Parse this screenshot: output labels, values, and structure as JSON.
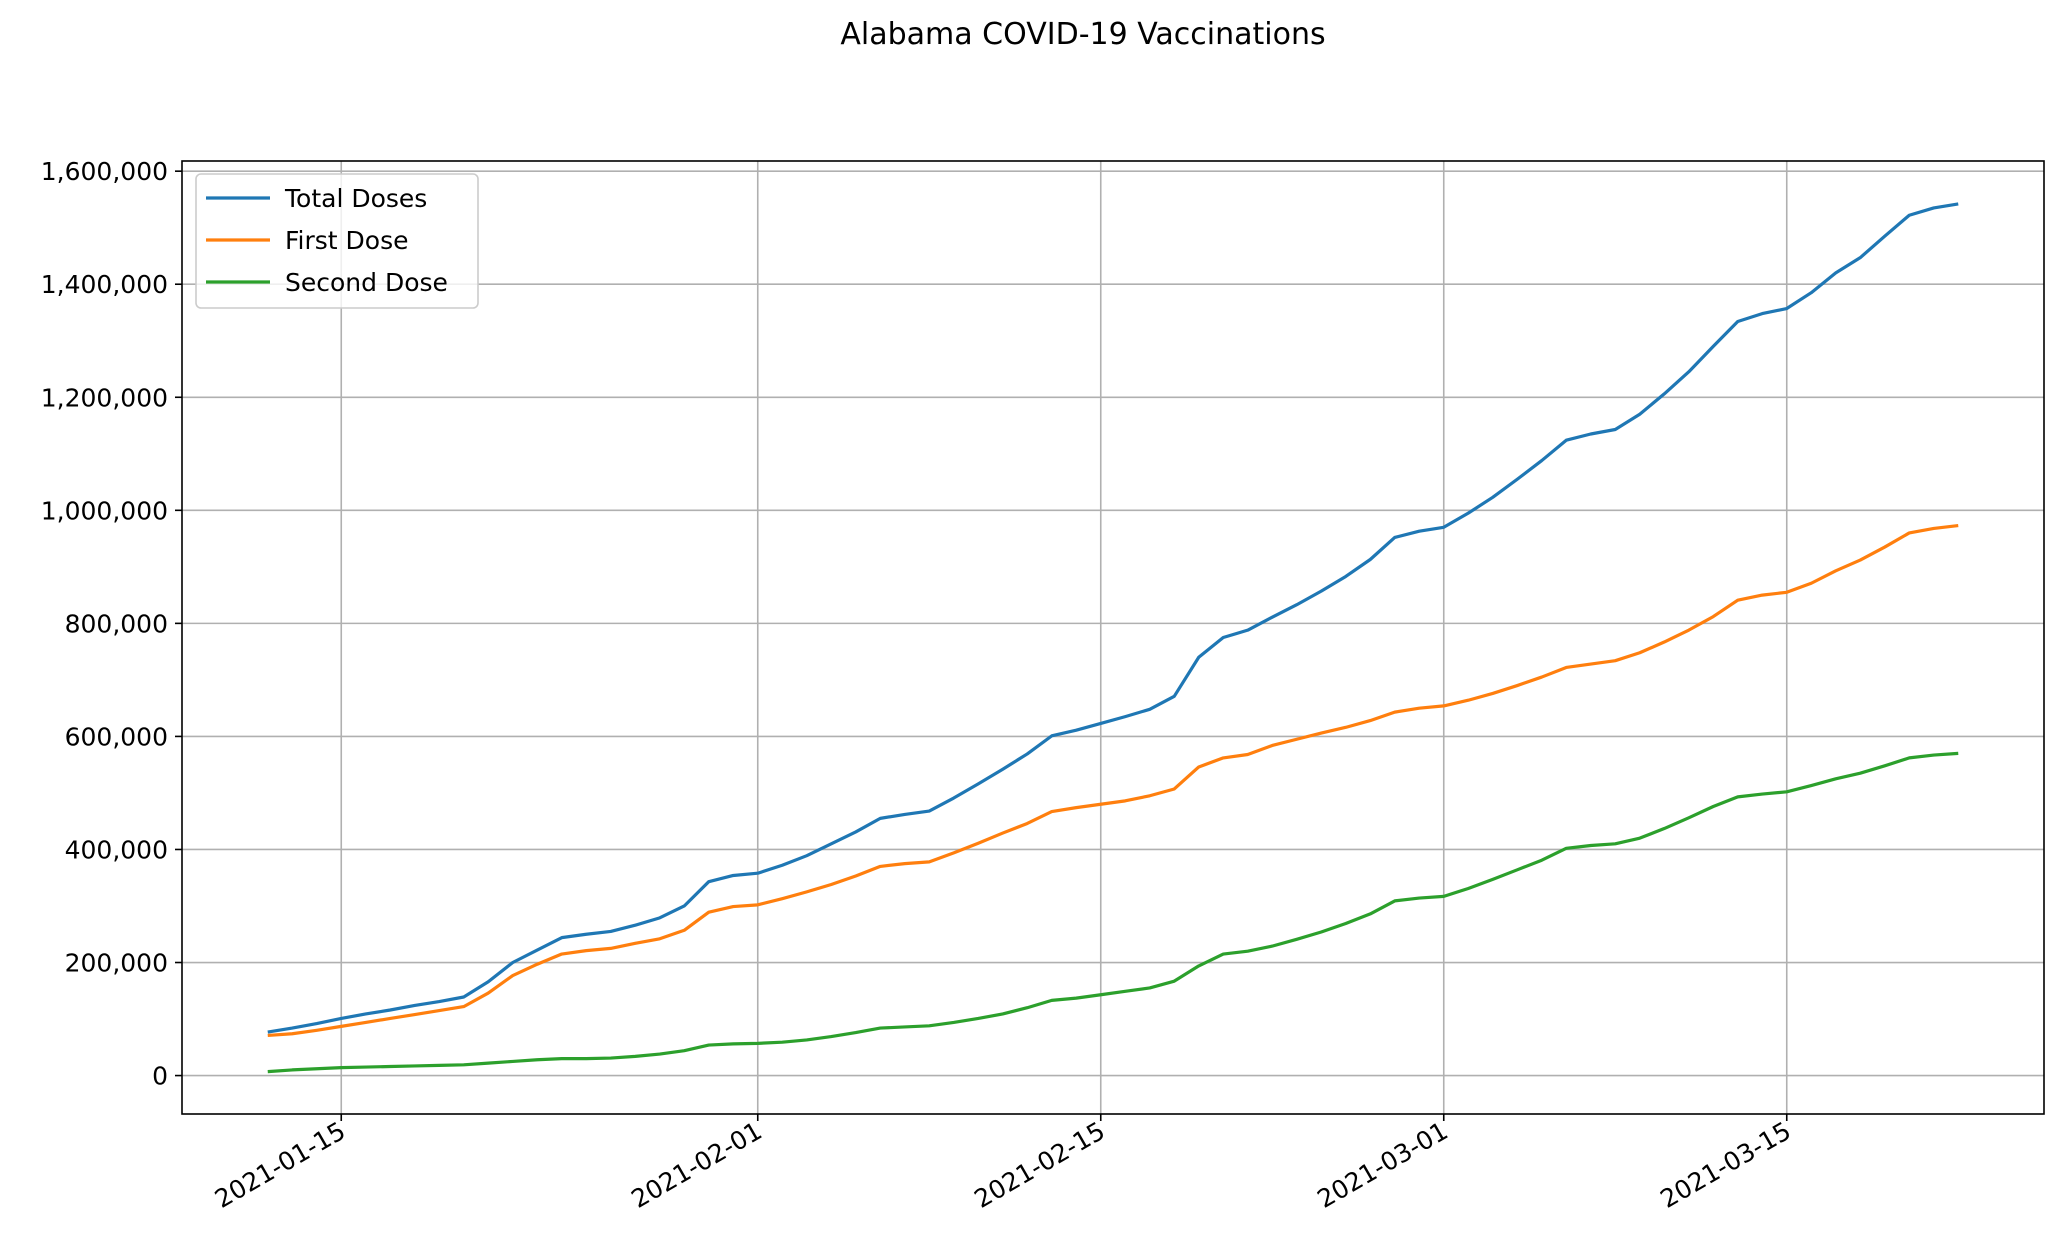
{
  "chart_data": {
    "type": "line",
    "title": "Alabama COVID-19 Vaccinations",
    "xlabel": "",
    "ylabel": "",
    "x_type": "date",
    "x_ticks": [
      "2021-01-15",
      "2021-02-01",
      "2021-02-15",
      "2021-03-01",
      "2021-03-15"
    ],
    "y_ticks": [
      0,
      200000,
      400000,
      600000,
      800000,
      1000000,
      1200000,
      1400000,
      1600000
    ],
    "y_tick_labels": [
      "0",
      "200,000",
      "400,000",
      "600,000",
      "800,000",
      "1,000,000",
      "1,200,000",
      "1,400,000",
      "1,600,000"
    ],
    "xlim": [
      "2021-01-08T12:00",
      "2021-03-25T12:00"
    ],
    "ylim": [
      -68000,
      1618000
    ],
    "grid": true,
    "legend_position": "upper left",
    "x": [
      "2021-01-12",
      "2021-01-13",
      "2021-01-14",
      "2021-01-15",
      "2021-01-16",
      "2021-01-17",
      "2021-01-18",
      "2021-01-19",
      "2021-01-20",
      "2021-01-21",
      "2021-01-22",
      "2021-01-23",
      "2021-01-24",
      "2021-01-25",
      "2021-01-26",
      "2021-01-27",
      "2021-01-28",
      "2021-01-29",
      "2021-01-30",
      "2021-01-31",
      "2021-02-01",
      "2021-02-02",
      "2021-02-03",
      "2021-02-04",
      "2021-02-05",
      "2021-02-06",
      "2021-02-07",
      "2021-02-08",
      "2021-02-09",
      "2021-02-10",
      "2021-02-11",
      "2021-02-12",
      "2021-02-13",
      "2021-02-14",
      "2021-02-15",
      "2021-02-16",
      "2021-02-17",
      "2021-02-18",
      "2021-02-19",
      "2021-02-20",
      "2021-02-21",
      "2021-02-22",
      "2021-02-23",
      "2021-02-24",
      "2021-02-25",
      "2021-02-26",
      "2021-02-27",
      "2021-02-28",
      "2021-03-01",
      "2021-03-02",
      "2021-03-03",
      "2021-03-04",
      "2021-03-05",
      "2021-03-06",
      "2021-03-07",
      "2021-03-08",
      "2021-03-09",
      "2021-03-10",
      "2021-03-11",
      "2021-03-12",
      "2021-03-13",
      "2021-03-14",
      "2021-03-15",
      "2021-03-16",
      "2021-03-17",
      "2021-03-18",
      "2021-03-19",
      "2021-03-20",
      "2021-03-21",
      "2021-03-22"
    ],
    "series": [
      {
        "name": "Total Doses",
        "color": "#1f77b4",
        "values": [
          77000,
          84000,
          92000,
          101000,
          109000,
          116000,
          124000,
          131000,
          139000,
          166000,
          200000,
          222000,
          244000,
          250000,
          255000,
          266000,
          279000,
          300000,
          343000,
          354000,
          358000,
          372000,
          389000,
          410000,
          431000,
          455000,
          462000,
          468000,
          491000,
          516000,
          542000,
          569000,
          601000,
          611000,
          623000,
          635000,
          648000,
          671000,
          740000,
          775000,
          788000,
          811000,
          833000,
          857000,
          883000,
          913000,
          952000,
          963000,
          970000,
          995000,
          1023000,
          1055000,
          1088000,
          1124000,
          1135000,
          1143000,
          1170000,
          1206000,
          1245000,
          1290000,
          1334000,
          1348000,
          1357000,
          1385000,
          1420000,
          1447000,
          1485000,
          1522000,
          1535000,
          1542000
        ]
      },
      {
        "name": "First Dose",
        "color": "#ff7f0e",
        "values": [
          71000,
          74000,
          80000,
          87000,
          94000,
          101000,
          108000,
          115000,
          122000,
          146000,
          177000,
          197000,
          215000,
          221000,
          225000,
          234000,
          242000,
          257000,
          289000,
          299000,
          302000,
          313000,
          325000,
          338000,
          353000,
          370000,
          375000,
          378000,
          394000,
          411000,
          429000,
          446000,
          467000,
          474000,
          480000,
          486000,
          495000,
          507000,
          546000,
          562000,
          568000,
          584000,
          595000,
          606000,
          616000,
          628000,
          643000,
          650000,
          654000,
          664000,
          676000,
          690000,
          705000,
          722000,
          728000,
          734000,
          748000,
          767000,
          788000,
          812000,
          841000,
          850000,
          855000,
          871000,
          893000,
          912000,
          935000,
          960000,
          968000,
          973000
        ]
      },
      {
        "name": "Second Dose",
        "color": "#2ca02c",
        "values": [
          7000,
          10000,
          12000,
          14000,
          15000,
          16000,
          17000,
          18000,
          19000,
          22000,
          25000,
          28000,
          30000,
          30000,
          31000,
          34000,
          38000,
          44000,
          54000,
          56000,
          57000,
          59000,
          63000,
          69000,
          76000,
          84000,
          86000,
          88000,
          94000,
          101000,
          109000,
          120000,
          133000,
          137000,
          143000,
          149000,
          155000,
          167000,
          194000,
          215000,
          220000,
          229000,
          241000,
          254000,
          269000,
          286000,
          309000,
          314000,
          317000,
          331000,
          347000,
          364000,
          381000,
          402000,
          407000,
          410000,
          420000,
          437000,
          456000,
          476000,
          493000,
          498000,
          502000,
          513000,
          525000,
          535000,
          548000,
          562000,
          567000,
          570000
        ]
      }
    ]
  }
}
